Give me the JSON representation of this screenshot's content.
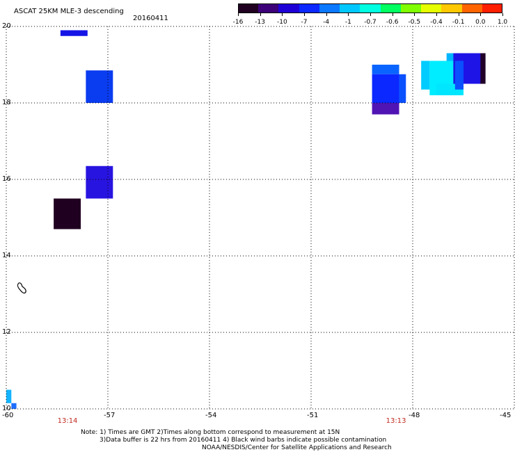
{
  "header": {
    "title": "ASCAT 25KM MLE-3 descending",
    "date": "20160411"
  },
  "colorbar": {
    "labels": [
      "-16",
      "-13",
      "-10",
      "-7",
      "-4",
      "-1",
      "-0.7",
      "-0.6",
      "-0.5",
      "-0.4",
      "-0.1",
      "0.0",
      "1.0"
    ],
    "colors": [
      "#200020",
      "#3c0078",
      "#1e00d6",
      "#0a28ff",
      "#0a78ff",
      "#00c8ff",
      "#00ffe0",
      "#00ff60",
      "#80ff00",
      "#e6ff00",
      "#ffc800",
      "#ff6400",
      "#ff1e00"
    ]
  },
  "map": {
    "lon_range": [
      -60,
      -45
    ],
    "lat_range": [
      10,
      20
    ],
    "lon_ticks": [
      "-60",
      "-57",
      "-54",
      "-51",
      "-48",
      "-45"
    ],
    "lat_ticks": [
      "20",
      "18",
      "16",
      "14",
      "12",
      "10"
    ],
    "times": [
      {
        "label": "13:14",
        "lon": -58.2
      },
      {
        "label": "13:13",
        "lon": -48.5
      }
    ],
    "cells": [
      {
        "lon": [
          -58.4,
          -57.6
        ],
        "lat": [
          19.9,
          19.75
        ],
        "color": "#1414e6"
      },
      {
        "lon": [
          -57.65,
          -56.85
        ],
        "lat": [
          18.85,
          18.0
        ],
        "color": "#0a3cf0"
      },
      {
        "lon": [
          -57.65,
          -56.85
        ],
        "lat": [
          16.35,
          15.5
        ],
        "color": "#2814e0"
      },
      {
        "lon": [
          -58.6,
          -57.8
        ],
        "lat": [
          15.5,
          14.7
        ],
        "color": "#200020"
      },
      {
        "lon": [
          -60.0,
          -59.85
        ],
        "lat": [
          10.5,
          10.15
        ],
        "color": "#14b4ff"
      },
      {
        "lon": [
          -59.85,
          -59.7
        ],
        "lat": [
          10.15,
          10.0
        ],
        "color": "#1e6eff"
      },
      {
        "lon": [
          -49.2,
          -48.4
        ],
        "lat": [
          19.0,
          18.75
        ],
        "color": "#0a64ff"
      },
      {
        "lon": [
          -49.2,
          -48.4
        ],
        "lat": [
          18.75,
          18.0
        ],
        "color": "#0a28ff"
      },
      {
        "lon": [
          -48.4,
          -48.2
        ],
        "lat": [
          18.75,
          18.0
        ],
        "color": "#0a50ff"
      },
      {
        "lon": [
          -49.2,
          -48.4
        ],
        "lat": [
          18.0,
          17.7
        ],
        "color": "#5014b4"
      },
      {
        "lon": [
          -47.75,
          -47.5
        ],
        "lat": [
          19.1,
          18.35
        ],
        "color": "#00ccff"
      },
      {
        "lon": [
          -47.5,
          -46.7
        ],
        "lat": [
          19.1,
          18.2
        ],
        "color": "#00ecff"
      },
      {
        "lon": [
          -47.3,
          -46.5
        ],
        "lat": [
          18.5,
          18.2
        ],
        "color": "#00e6ff"
      },
      {
        "lon": [
          -47.0,
          -46.7
        ],
        "lat": [
          19.3,
          19.1
        ],
        "color": "#00b4ff"
      },
      {
        "lon": [
          -46.8,
          -45.9
        ],
        "lat": [
          19.3,
          18.5
        ],
        "color": "#1e14e6"
      },
      {
        "lon": [
          -46.75,
          -46.5
        ],
        "lat": [
          19.1,
          18.35
        ],
        "color": "#0a50ff"
      },
      {
        "lon": [
          -46.0,
          -45.85
        ],
        "lat": [
          19.3,
          18.5
        ],
        "color": "#200028"
      }
    ]
  },
  "footer": {
    "note1": "Note: 1) Times are GMT 2)Times along bottom correspond to measurement at 15N",
    "note2": "3)Data buffer is 22 hrs from 20160411 4) Black wind barbs indicate possible contamination",
    "credit": "NOAA/NESDIS/Center for Satellite Applications and Research"
  }
}
